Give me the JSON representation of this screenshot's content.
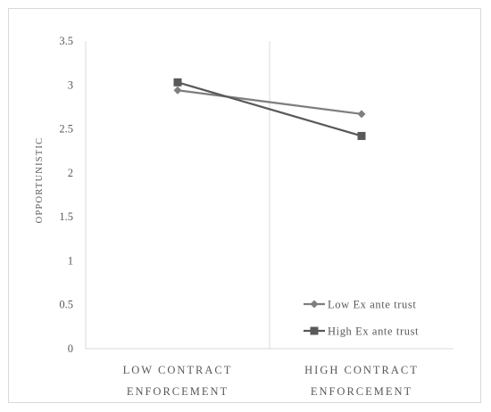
{
  "chart_data": {
    "type": "line",
    "title": "",
    "xlabel": "",
    "ylabel": "OPPORTUNISTIC",
    "ylim": [
      0,
      3.5
    ],
    "y_ticks": [
      "0",
      "0.5",
      "1",
      "1.5",
      "2",
      "2.5",
      "3",
      "3.5"
    ],
    "categories": [
      [
        "LOW CONTRACT",
        "ENFORCEMENT"
      ],
      [
        "HIGH CONTRACT",
        "ENFORCEMENT"
      ]
    ],
    "series": [
      {
        "name": "Low Ex ante trust",
        "values": [
          2.94,
          2.67
        ],
        "marker": "diamond",
        "color": "#7f7f7f"
      },
      {
        "name": "High Ex ante trust",
        "values": [
          3.03,
          2.42
        ],
        "marker": "square",
        "color": "#595959"
      }
    ],
    "grid": false,
    "category_divider": true,
    "legend_position": "bottom-right"
  }
}
